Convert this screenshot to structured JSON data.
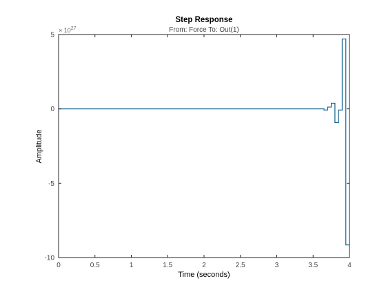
{
  "chart_data": {
    "type": "line",
    "title": "Step Response",
    "subtitle": "From: Force  To: Out(1)",
    "xlabel": "Time (seconds)",
    "ylabel": "Amplitude",
    "exponent_label": "× 10",
    "exponent_power": "27",
    "xlim": [
      0,
      4
    ],
    "ylim": [
      -10,
      5
    ],
    "x_ticks": [
      0,
      0.5,
      1,
      1.5,
      2,
      2.5,
      3,
      3.5,
      4
    ],
    "x_tick_labels": [
      "0",
      "0.5",
      "1",
      "1.5",
      "2",
      "2.5",
      "3",
      "3.5",
      "4"
    ],
    "y_ticks": [
      -10,
      -5,
      0,
      5
    ],
    "y_tick_labels": [
      "-10",
      "-5",
      "0",
      "5"
    ],
    "grid": false,
    "line_color": "#0e6290",
    "step_style": "zero-order-hold",
    "series": [
      {
        "x": [
          0,
          3.65,
          3.7,
          3.75,
          3.8,
          3.85,
          3.9,
          3.95,
          4.0
        ],
        "y": [
          0,
          -0.08,
          0.12,
          0.38,
          -0.92,
          -0.08,
          4.7,
          -9.15,
          -9.15
        ]
      }
    ]
  }
}
